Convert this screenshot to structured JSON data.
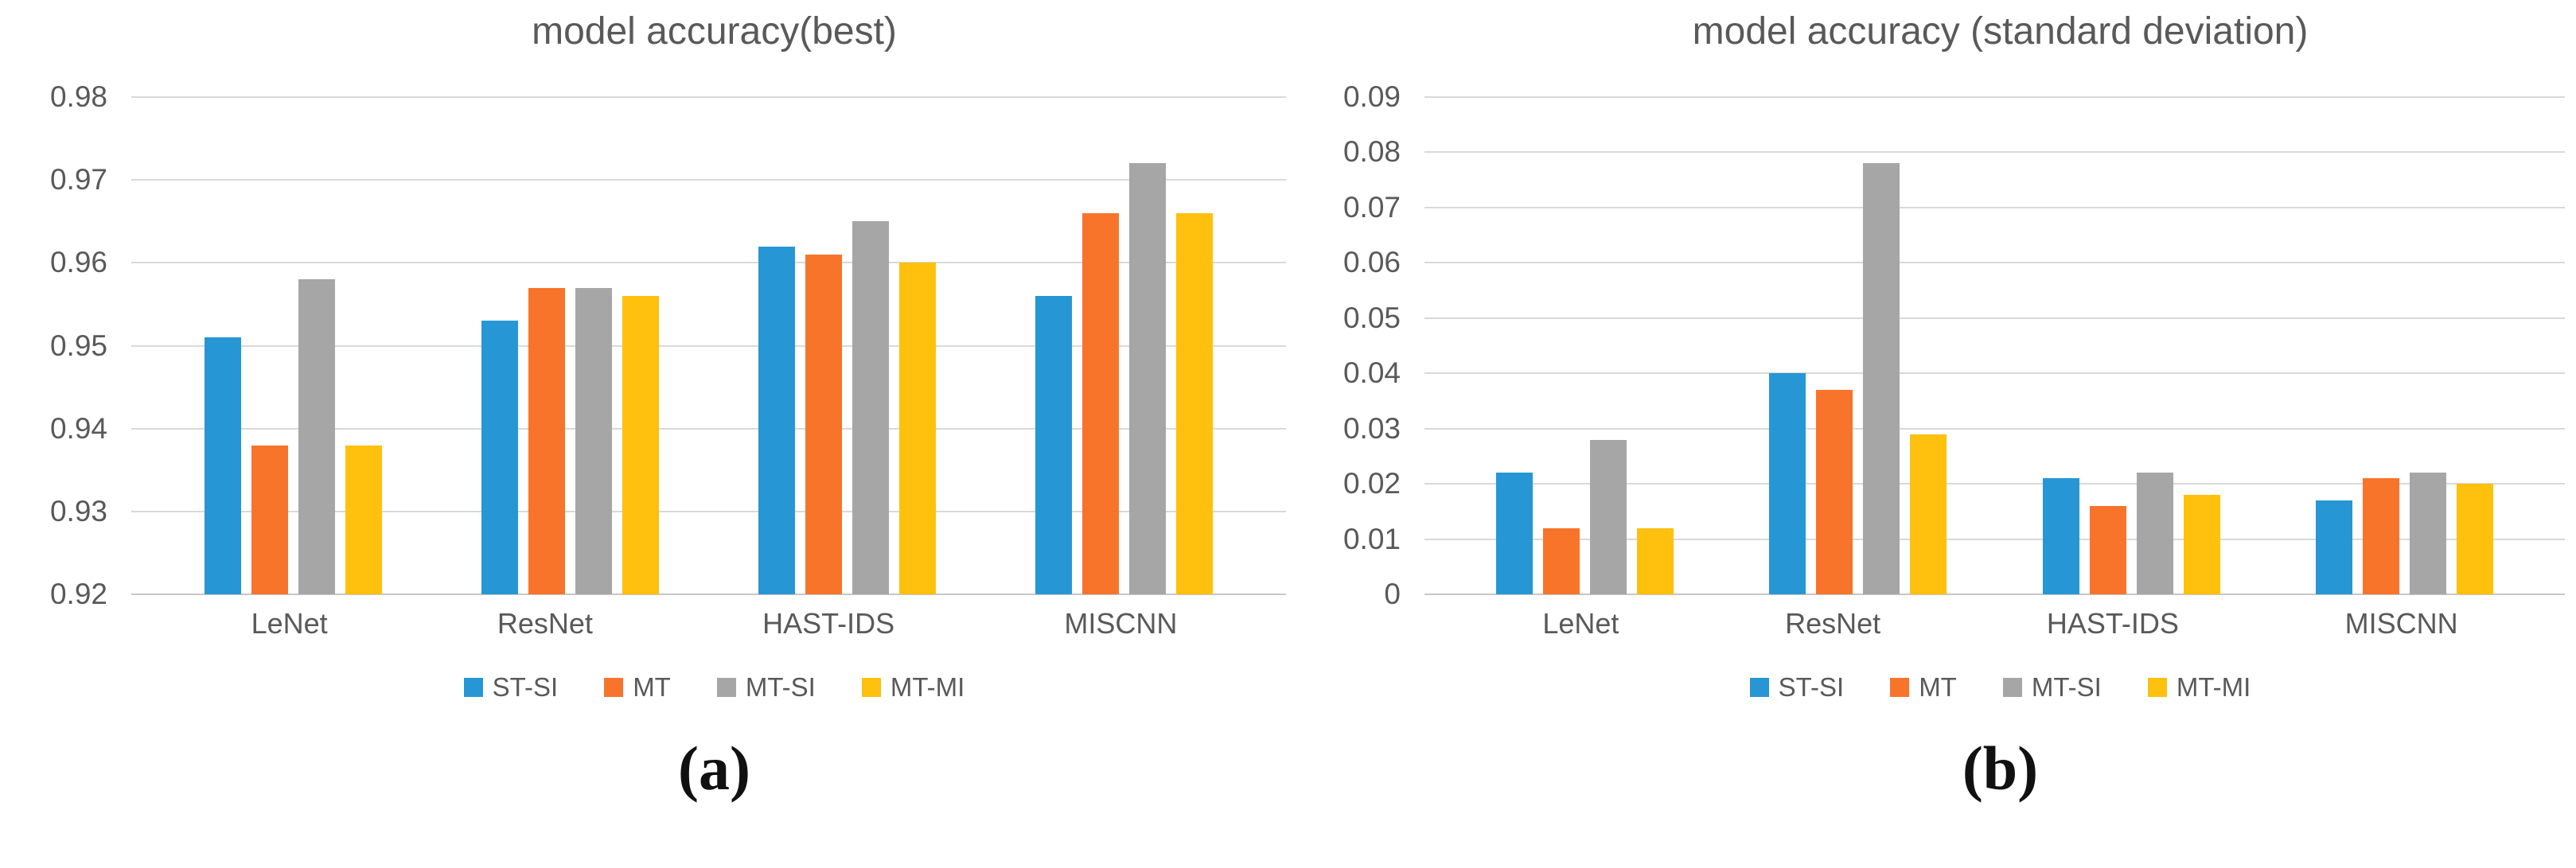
{
  "colors": {
    "text": "#595959",
    "gridline": "#d9d9d9",
    "axis_line": "#c6c6c6",
    "caption_text": "#111111",
    "series_blue": "#2697D4",
    "series_orange": "#F8742B",
    "series_gray": "#A6A6A6",
    "series_yellow": "#FFC00E"
  },
  "chart_data": [
    {
      "type": "bar",
      "title": "model accuracy(best)",
      "caption": "(a)",
      "xlabel": "",
      "ylabel": "",
      "categories": [
        "LeNet",
        "ResNet",
        "HAST-IDS",
        "MISCNN"
      ],
      "series": [
        {
          "name": "ST-SI",
          "color": "#2697D4",
          "values": [
            0.951,
            0.953,
            0.962,
            0.956
          ]
        },
        {
          "name": "MT",
          "color": "#F8742B",
          "values": [
            0.938,
            0.957,
            0.961,
            0.966
          ]
        },
        {
          "name": "MT-SI",
          "color": "#A6A6A6",
          "values": [
            0.958,
            0.957,
            0.965,
            0.972
          ]
        },
        {
          "name": "MT-MI",
          "color": "#FFC00E",
          "values": [
            0.938,
            0.956,
            0.96,
            0.966
          ]
        }
      ],
      "ylim": [
        0.92,
        0.98
      ],
      "y_ticks": [
        "0.98",
        "0.97",
        "0.96",
        "0.95",
        "0.94",
        "0.93",
        "0.92"
      ],
      "grid": true,
      "legend_position": "bottom"
    },
    {
      "type": "bar",
      "title": "model accuracy (standard deviation)",
      "caption": "(b)",
      "xlabel": "",
      "ylabel": "",
      "categories": [
        "LeNet",
        "ResNet",
        "HAST-IDS",
        "MISCNN"
      ],
      "series": [
        {
          "name": "ST-SI",
          "color": "#2697D4",
          "values": [
            0.022,
            0.04,
            0.021,
            0.017
          ]
        },
        {
          "name": "MT",
          "color": "#F8742B",
          "values": [
            0.012,
            0.037,
            0.016,
            0.021
          ]
        },
        {
          "name": "MT-SI",
          "color": "#A6A6A6",
          "values": [
            0.028,
            0.078,
            0.022,
            0.022
          ]
        },
        {
          "name": "MT-MI",
          "color": "#FFC00E",
          "values": [
            0.012,
            0.029,
            0.018,
            0.02
          ]
        }
      ],
      "ylim": [
        0,
        0.09
      ],
      "y_ticks": [
        "0.09",
        "0.08",
        "0.07",
        "0.06",
        "0.05",
        "0.04",
        "0.03",
        "0.02",
        "0.01",
        "0"
      ],
      "grid": true,
      "legend_position": "bottom"
    }
  ]
}
